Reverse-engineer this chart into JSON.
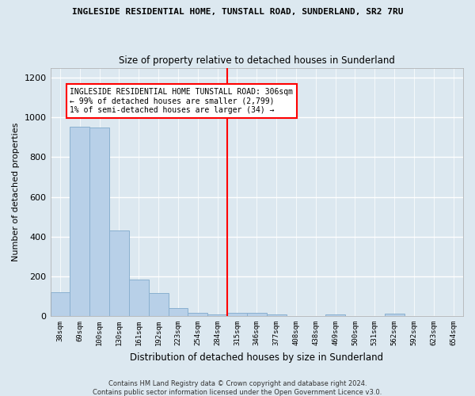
{
  "title": "INGLESIDE RESIDENTIAL HOME, TUNSTALL ROAD, SUNDERLAND, SR2 7RU",
  "subtitle": "Size of property relative to detached houses in Sunderland",
  "xlabel": "Distribution of detached houses by size in Sunderland",
  "ylabel": "Number of detached properties",
  "categories": [
    "38sqm",
    "69sqm",
    "100sqm",
    "130sqm",
    "161sqm",
    "192sqm",
    "223sqm",
    "254sqm",
    "284sqm",
    "315sqm",
    "346sqm",
    "377sqm",
    "408sqm",
    "438sqm",
    "469sqm",
    "500sqm",
    "531sqm",
    "562sqm",
    "592sqm",
    "623sqm",
    "654sqm"
  ],
  "values": [
    120,
    955,
    950,
    430,
    185,
    115,
    42,
    18,
    10,
    15,
    15,
    10,
    0,
    0,
    10,
    0,
    0,
    12,
    0,
    0,
    0
  ],
  "bar_color": "#b8d0e8",
  "bar_edge_color": "#8ab0d0",
  "vline_index": 8.5,
  "annotation_title": "INGLESIDE RESIDENTIAL HOME TUNSTALL ROAD: 306sqm",
  "annotation_line1": "← 99% of detached houses are smaller (2,799)",
  "annotation_line2": "1% of semi-detached houses are larger (34) →",
  "ylim": [
    0,
    1250
  ],
  "yticks": [
    0,
    200,
    400,
    600,
    800,
    1000,
    1200
  ],
  "background_color": "#dce8f0",
  "fig_background_color": "#dce8f0",
  "grid_color": "#ffffff",
  "footer1": "Contains HM Land Registry data © Crown copyright and database right 2024.",
  "footer2": "Contains public sector information licensed under the Open Government Licence v3.0."
}
